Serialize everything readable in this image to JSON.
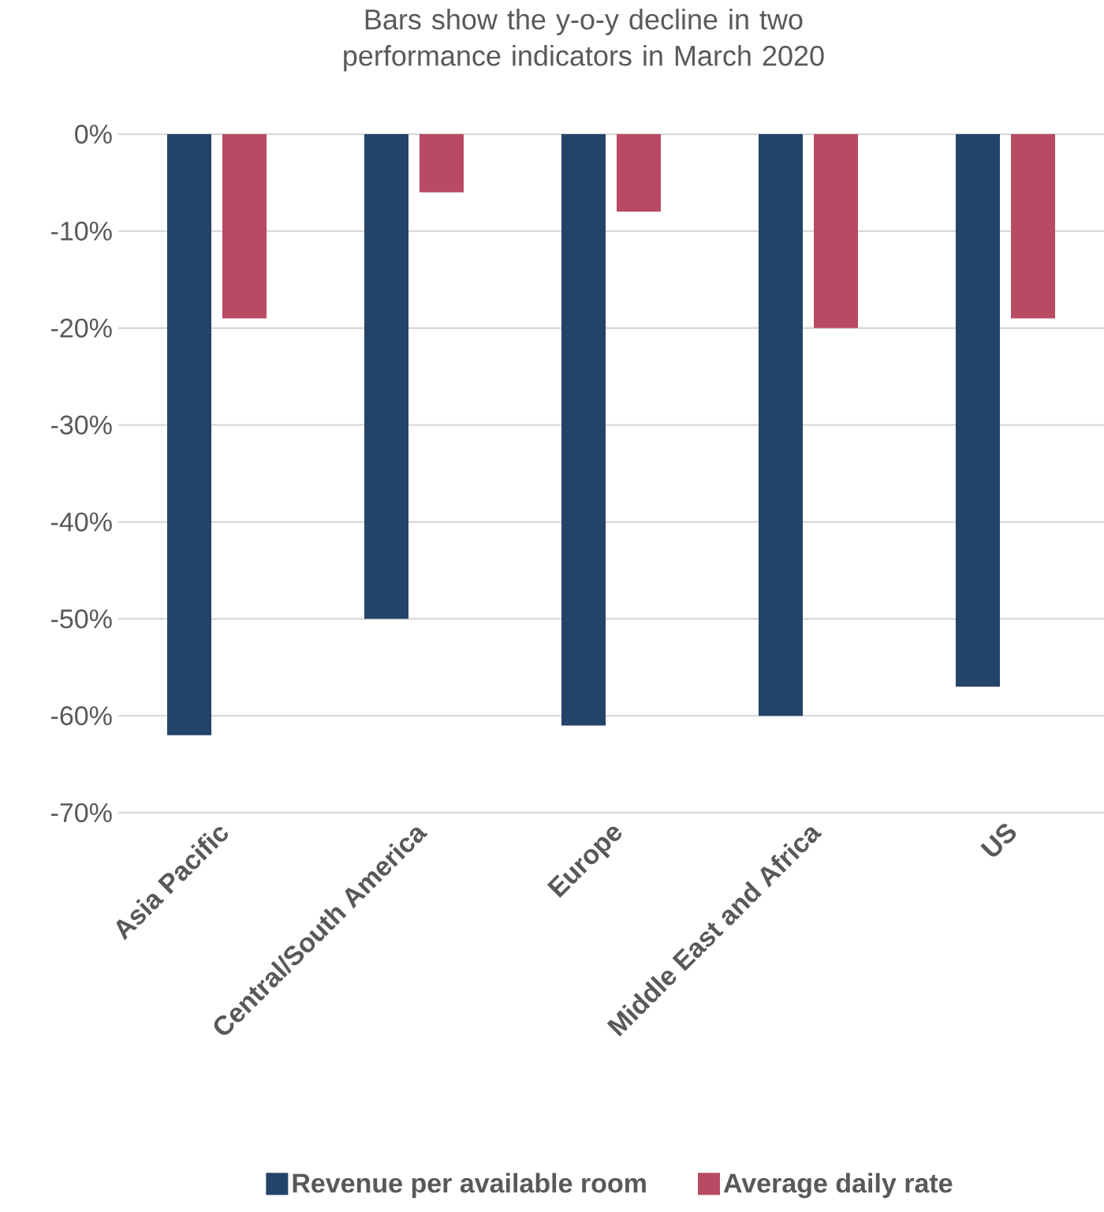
{
  "chart_data": {
    "type": "bar",
    "title": "Bars show the y-o-y decline in two performance indicators in March 2020",
    "categories": [
      "Asia Pacific",
      "Central/South America",
      "Europe",
      "Middle East and Africa",
      "US"
    ],
    "series": [
      {
        "name": "Revenue per available room",
        "color": "#244369",
        "values": [
          -62,
          -50,
          -61,
          -60,
          -57
        ]
      },
      {
        "name": "Average daily rate",
        "color": "#b94a64",
        "values": [
          -19,
          -6,
          -8,
          -20,
          -19
        ]
      }
    ],
    "ylim": [
      -70,
      0
    ],
    "yticks": [
      {
        "value": 0,
        "label": "0%"
      },
      {
        "value": -10,
        "label": "-10%"
      },
      {
        "value": -20,
        "label": "-20%"
      },
      {
        "value": -30,
        "label": "-30%"
      },
      {
        "value": -40,
        "label": "-40%"
      },
      {
        "value": -50,
        "label": "-50%"
      },
      {
        "value": -60,
        "label": "-60%"
      },
      {
        "value": -70,
        "label": "-70%"
      }
    ],
    "grid": "y",
    "legend": "bottom"
  }
}
